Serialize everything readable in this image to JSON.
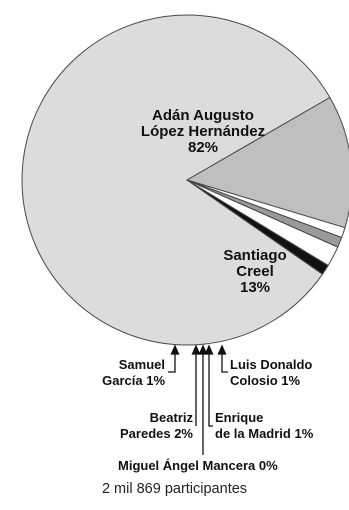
{
  "chart_data": {
    "type": "pie",
    "slices": [
      {
        "name_lines": [
          "Adán Augusto",
          "López Hernández"
        ],
        "value_label": "82%",
        "value": 82,
        "color": "#dcdcdc"
      },
      {
        "name_lines": [
          "Santiago",
          "Creel"
        ],
        "value_label": "13%",
        "value": 13,
        "color": "#bfbfbf"
      },
      {
        "name_lines": [
          "Luis Donaldo",
          "Colosio 1%"
        ],
        "value": 1,
        "color": "#ffffff"
      },
      {
        "name_lines": [
          "Enrique",
          "de la Madrid 1%"
        ],
        "value": 1,
        "color": "#9a9a9a"
      },
      {
        "name_lines": [
          "Miguel Ángel Mancera 0%"
        ],
        "value": 0,
        "color": "#ffffff"
      },
      {
        "name_lines": [
          "Beatriz",
          "Paredes 2%"
        ],
        "value": 2,
        "color": "#ffffff"
      },
      {
        "name_lines": [
          "Samuel",
          "García 1%"
        ],
        "value": 1,
        "color": "#111111"
      }
    ],
    "note": "2 mil 869 participantes"
  }
}
